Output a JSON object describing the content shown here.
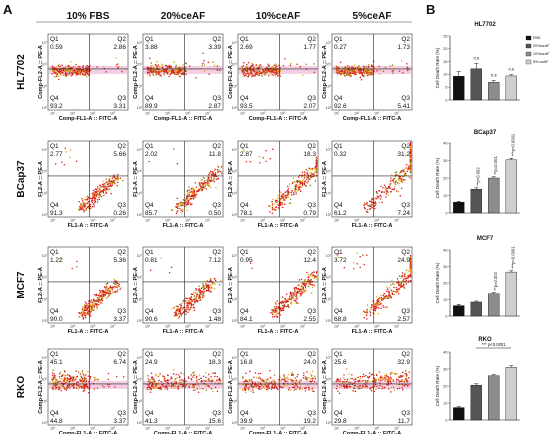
{
  "figure": {
    "panel_a_label": "A",
    "panel_b_label": "B",
    "columns": [
      "10% FBS",
      "20%ceAF",
      "10%ceAF",
      "5%ceAF"
    ],
    "rows": [
      "HL7702",
      "BCap37",
      "MCF7",
      "RKO"
    ],
    "quadrant_names": [
      "Q1",
      "Q2",
      "Q3",
      "Q4"
    ],
    "tick_labels": [
      "10⁰",
      "10¹",
      "10²",
      "10³",
      "10⁴",
      "10⁵",
      "10⁶",
      "10⁷"
    ],
    "colors": {
      "events": "#dd1c1c",
      "events_dense": "#e0a81a",
      "events_mid": "#8b7a1a",
      "haze": "#f3c6e0",
      "gate": "#222222"
    }
  },
  "chart_data": [
    {
      "type": "scatter",
      "title": "Flow cytometry (Annexin V-FITC / PE)",
      "cell_lines": [
        "HL7702",
        "BCap37",
        "MCF7",
        "RKO"
      ],
      "conditions": [
        "10% FBS",
        "20%ceAF",
        "10%ceAF",
        "5%ceAF"
      ],
      "quadrant_values": {
        "HL7702": [
          {
            "Q1": "0.59",
            "Q2": "2.86",
            "Q3": "3.31",
            "Q4": "93.2"
          },
          {
            "Q1": "3.88",
            "Q2": "3.39",
            "Q3": "2.87",
            "Q4": "89.9"
          },
          {
            "Q1": "2.69",
            "Q2": "1.77",
            "Q3": "2.07",
            "Q4": "93.5"
          },
          {
            "Q1": "0.27",
            "Q2": "1.73",
            "Q3": "5.41",
            "Q4": "92.6"
          }
        ],
        "BCap37": [
          {
            "Q1": "2.77",
            "Q2": "5.66",
            "Q3": "0.26",
            "Q4": "91.3"
          },
          {
            "Q1": "2.02",
            "Q2": "11.8",
            "Q3": "0.50",
            "Q4": "85.7"
          },
          {
            "Q1": "2.87",
            "Q2": "18.3",
            "Q3": "0.79",
            "Q4": "78.1"
          },
          {
            "Q1": "0.32",
            "Q2": "31.2",
            "Q3": "7.24",
            "Q4": "61.2"
          }
        ],
        "MCF7": [
          {
            "Q1": "1.22",
            "Q2": "5.36",
            "Q3": "3.37",
            "Q4": "90.0"
          },
          {
            "Q1": "0.81",
            "Q2": "7.12",
            "Q3": "1.48",
            "Q4": "90.6"
          },
          {
            "Q1": "0.95",
            "Q2": "12.4",
            "Q3": "2.55",
            "Q4": "84.1"
          },
          {
            "Q1": "3.72",
            "Q2": "24.9",
            "Q3": "2.57",
            "Q4": "68.8"
          }
        ],
        "RKO": [
          {
            "Q1": "45.1",
            "Q2": "6.74",
            "Q3": "3.37",
            "Q4": "44.8"
          },
          {
            "Q1": "24.9",
            "Q2": "18.3",
            "Q3": "15.6",
            "Q4": "41.3"
          },
          {
            "Q1": "16.8",
            "Q2": "24.0",
            "Q3": "19.2",
            "Q4": "39.9"
          },
          {
            "Q1": "25.6",
            "Q2": "32.9",
            "Q3": "11.7",
            "Q4": "29.8"
          }
        ]
      },
      "x_axis_labels": {
        "HL7702": "Comp-FL1-A :: FITC-A",
        "BCap37": "FL1-A :: FITC-A",
        "MCF7": "FL1-A :: FITC-A",
        "RKO": "Comp-FL1-A :: FITC-A"
      },
      "y_axis_labels": {
        "HL7702": "Comp-FL2-A :: PE-A",
        "BCap37": "FL2-A :: PE-A",
        "MCF7": "FL2-A :: PE-A",
        "RKO": "Comp-FL2-A :: PE-A"
      }
    },
    {
      "type": "bar",
      "title": "HL7702",
      "categories": [
        "FBS",
        "20%ceAF",
        "10%ceAF",
        "5% ceAF"
      ],
      "values": [
        9.3,
        12.2,
        6.9,
        9.4
      ],
      "errors": [
        1.8,
        2.1,
        0.7,
        0.5
      ],
      "ylabel": "Cell Death Rate (%)",
      "ylim": [
        0,
        25
      ],
      "yticks": [
        "0",
        "5",
        "10",
        "15",
        "20",
        "25"
      ],
      "annotations": [
        "n.s",
        "n.s",
        "n.s"
      ],
      "legend": [
        "FBS",
        "20%ceAF",
        "10%ceAF",
        "5% ceAF"
      ],
      "colors": [
        "#111111",
        "#555555",
        "#8c8c8c",
        "#cfcfcf"
      ]
    },
    {
      "type": "bar",
      "title": "BCap37",
      "categories": [
        "FBS",
        "20%ceAF",
        "10%ceAF",
        "5% ceAF"
      ],
      "values": [
        6.2,
        13.6,
        20.0,
        30.4
      ],
      "errors": [
        0.5,
        0.8,
        0.7,
        0.9
      ],
      "ylabel": "Cell Death Rate (%)",
      "ylim": [
        0,
        40
      ],
      "yticks": [
        "0",
        "10",
        "20",
        "30",
        "40"
      ],
      "annotations": [
        "**p=0.002",
        "**p=0.001",
        "***p<0.0001"
      ],
      "colors": [
        "#111111",
        "#555555",
        "#8c8c8c",
        "#cfcfcf"
      ]
    },
    {
      "type": "bar",
      "title": "MCF7",
      "categories": [
        "FBS",
        "20%ceAF",
        "10%ceAF",
        "5% ceAF"
      ],
      "values": [
        6.3,
        8.5,
        13.5,
        26.6
      ],
      "errors": [
        0.8,
        0.6,
        0.7,
        0.8
      ],
      "ylabel": "Cell Death Rate (%)",
      "ylim": [
        0,
        40
      ],
      "yticks": [
        "0",
        "10",
        "20",
        "30",
        "40"
      ],
      "annotations": [
        "**p=0.002",
        "***p<0.0001"
      ],
      "colors": [
        "#111111",
        "#555555",
        "#8c8c8c",
        "#cfcfcf"
      ]
    },
    {
      "type": "bar",
      "title": "RKO",
      "categories": [
        "FBS",
        "20%ceAF",
        "10%ceAF",
        "5% ceAF"
      ],
      "values": [
        7.3,
        20.5,
        26.0,
        31.0
      ],
      "errors": [
        0.6,
        0.8,
        0.7,
        0.9
      ],
      "ylabel": "Cell Death Rate (%)",
      "ylim": [
        0,
        40
      ],
      "yticks": [
        "0",
        "10",
        "20",
        "30",
        "40"
      ],
      "annotations": [
        "*** p<0.0001"
      ],
      "colors": [
        "#111111",
        "#555555",
        "#8c8c8c",
        "#cfcfcf"
      ]
    }
  ]
}
